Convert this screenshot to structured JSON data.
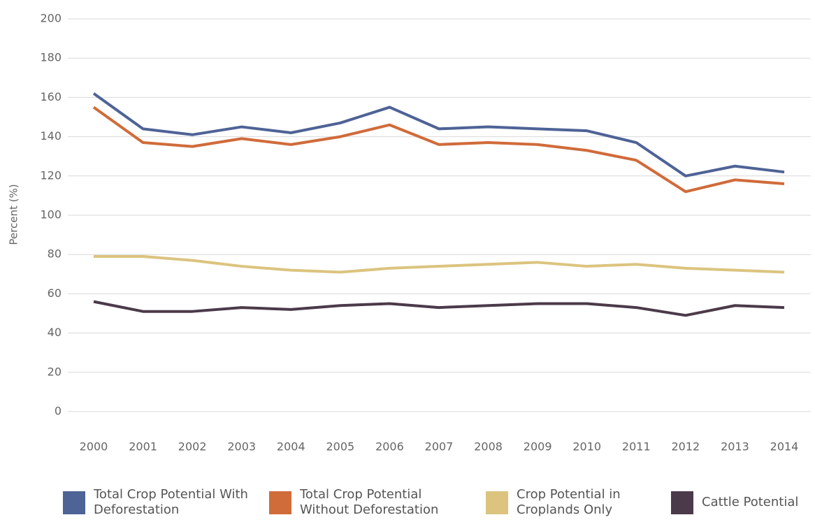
{
  "chart_data": {
    "type": "line",
    "y_label": "Percent (%)",
    "categories": [
      "2000",
      "2001",
      "2002",
      "2003",
      "2004",
      "2005",
      "2006",
      "2007",
      "2008",
      "2009",
      "2010",
      "2011",
      "2012",
      "2013",
      "2014"
    ],
    "series": [
      {
        "name": "Total Crop Potential With Deforestation",
        "color": "#4e6396",
        "values": [
          162,
          144,
          141,
          145,
          142,
          147,
          155,
          144,
          145,
          144,
          143,
          137,
          120,
          125,
          122
        ]
      },
      {
        "name": "Total Crop Potential Without Deforestation",
        "color": "#d06b3a",
        "values": [
          155,
          137,
          135,
          139,
          136,
          140,
          146,
          136,
          137,
          136,
          133,
          128,
          112,
          118,
          116
        ]
      },
      {
        "name": "Crop Potential in Croplands Only",
        "color": "#dcc47f",
        "values": [
          79,
          79,
          77,
          74,
          72,
          71,
          73,
          74,
          75,
          76,
          74,
          75,
          73,
          72,
          71
        ]
      },
      {
        "name": "Cattle Potential",
        "color": "#4b3a4a",
        "values": [
          56,
          51,
          51,
          53,
          52,
          54,
          55,
          53,
          54,
          55,
          55,
          53,
          49,
          54,
          53
        ]
      }
    ],
    "ylim": [
      0,
      200
    ],
    "yticks": [
      0,
      20,
      40,
      60,
      80,
      100,
      120,
      140,
      160,
      180,
      200
    ],
    "grid": true
  }
}
